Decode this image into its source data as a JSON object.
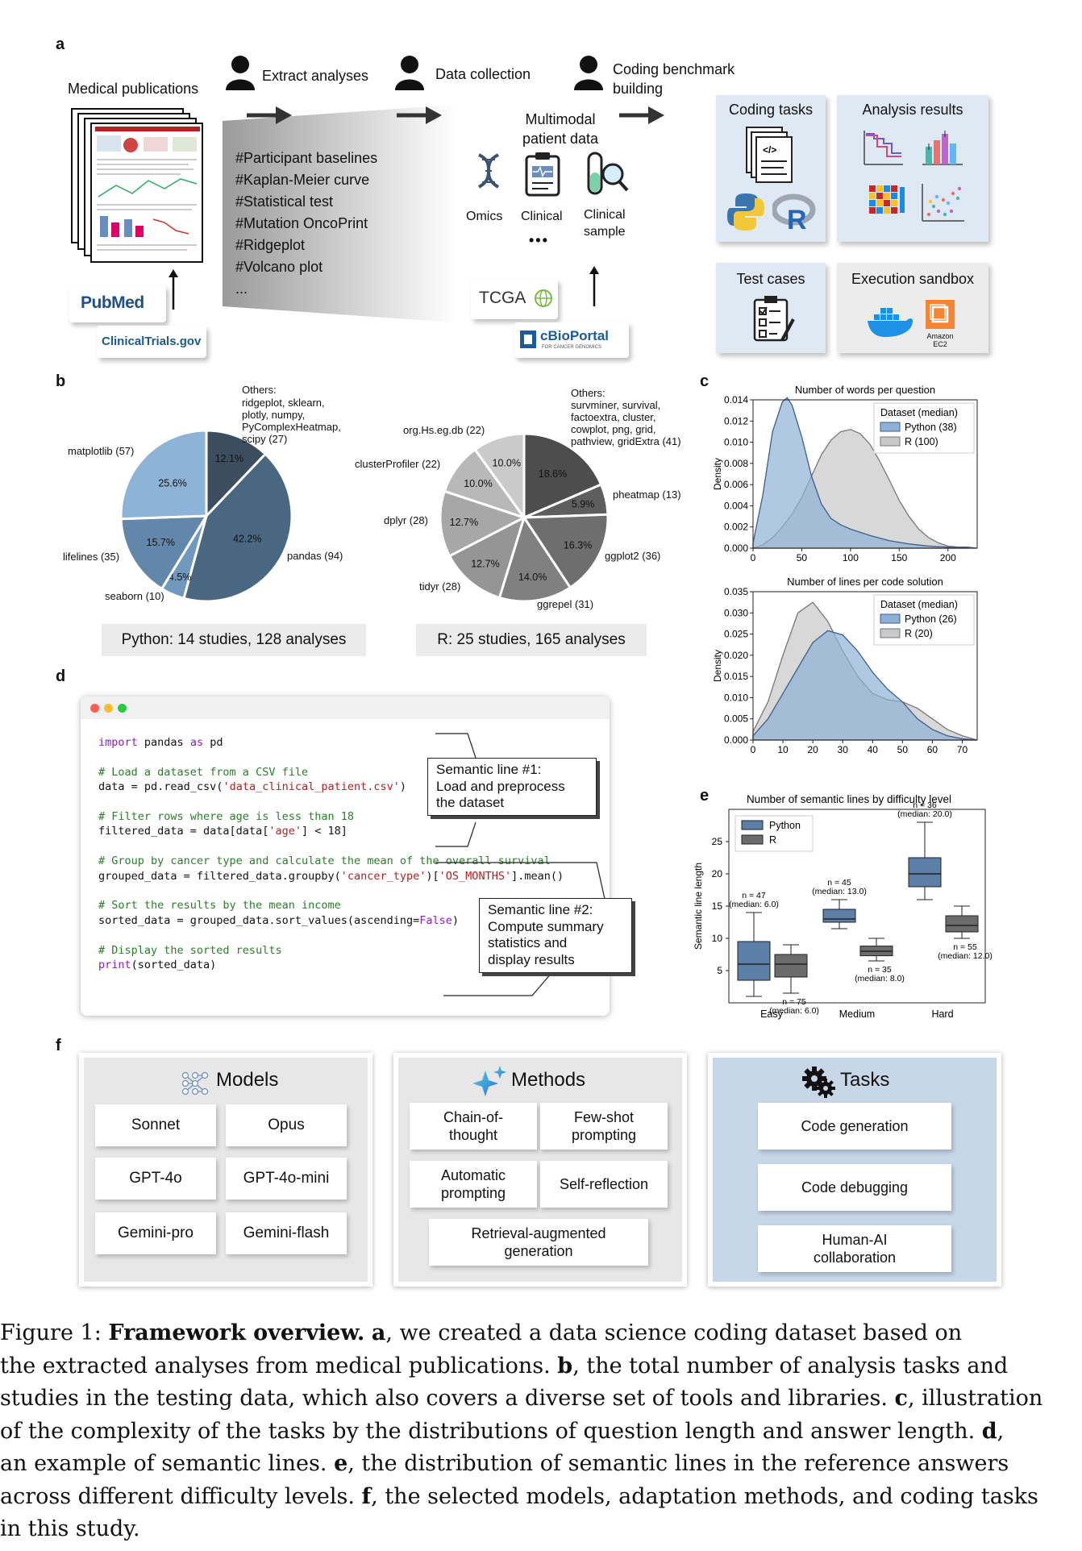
{
  "panels": {
    "a": "a",
    "b": "b",
    "c": "c",
    "d": "d",
    "e": "e",
    "f": "f"
  },
  "a": {
    "medical_publications": "Medical publications",
    "extract_analyses": "Extract analyses",
    "data_collection": "Data collection",
    "coding_benchmark_1": "Coding benchmark",
    "coding_benchmark_2": "building",
    "hashtags": [
      "#Participant baselines",
      "#Kaplan-Meier curve",
      "#Statistical test",
      "#Mutation OncoPrint",
      "#Ridgeplot",
      "#Volcano plot",
      "..."
    ],
    "multimodal_1": "Multimodal",
    "multimodal_2": "patient data",
    "omics": "Omics",
    "clinical": "Clinical",
    "clinical_sample_1": "Clinical",
    "clinical_sample_2": "sample",
    "ellipsis": "•••",
    "pubmed_logo": "PubMed",
    "clinicaltrials_logo": "ClinicalTrials.gov",
    "tcga_logo": "TCGA",
    "cbioportal_logo": "cBioPortal",
    "cbioportal_sub": "FOR CANCER GENOMICS",
    "coding_tasks": "Coding tasks",
    "analysis_results": "Analysis results",
    "test_cases": "Test cases",
    "execution_sandbox": "Execution sandbox",
    "amazon_ec2": "Amazon EC2",
    "amazon_1": "Amazon",
    "amazon_2": "EC2"
  },
  "b": {
    "python_caption": "Python: 14 studies, 128 analyses",
    "r_caption": "R: 25 studies, 165 analyses"
  },
  "chart_data": [
    {
      "type": "pie",
      "id": "python_libraries",
      "slices": [
        {
          "label": "Others: ridgeplot, sklearn, plotly, numpy, PyComplexHeatmap, scipy (27)",
          "count": 27,
          "percent": 12.1
        },
        {
          "label": "pandas (94)",
          "count": 94,
          "percent": 42.2
        },
        {
          "label": "seaborn (10)",
          "count": 10,
          "percent": 4.5
        },
        {
          "label": "lifelines (35)",
          "count": 35,
          "percent": 15.7
        },
        {
          "label": "matplotlib (57)",
          "count": 57,
          "percent": 25.6
        }
      ],
      "colors": [
        "#3c4d60",
        "#4a6781",
        "#7198bd",
        "#6387ab",
        "#8db3d6"
      ]
    },
    {
      "type": "pie",
      "id": "r_libraries",
      "slices": [
        {
          "label": "Others: survminer, survival, factoextra, cluster, cowplot, png, grid, pathview, gridExtra (41)",
          "count": 41,
          "percent": 18.6
        },
        {
          "label": "pheatmap (13)",
          "count": 13,
          "percent": 5.9
        },
        {
          "label": "ggplot2 (36)",
          "count": 36,
          "percent": 16.3
        },
        {
          "label": "ggrepel (31)",
          "count": 31,
          "percent": 14.0
        },
        {
          "label": "tidyr (28)",
          "count": 28,
          "percent": 12.7
        },
        {
          "label": "dplyr (28)",
          "count": 28,
          "percent": 12.7
        },
        {
          "label": "clusterProfiler (22)",
          "count": 22,
          "percent": 10.0
        },
        {
          "label": "org.Hs.eg.db (22)",
          "count": 22,
          "percent": 10.0
        }
      ],
      "colors": [
        "#4d4d4d",
        "#5e5e5e",
        "#6e6e6e",
        "#808080",
        "#959595",
        "#a7a7a7",
        "#b8b8b8",
        "#cacaca"
      ]
    },
    {
      "type": "area",
      "id": "words_per_question",
      "title": "Number of words per question",
      "ylabel": "Density",
      "xlim": [
        0,
        230
      ],
      "ylim": [
        0,
        0.014
      ],
      "xticks": [
        0,
        50,
        100,
        150,
        200
      ],
      "yticks": [
        "0.000",
        "0.002",
        "0.004",
        "0.006",
        "0.008",
        "0.010",
        "0.012",
        "0.014"
      ],
      "legend_title": "Dataset (median)",
      "legend_position": "top-right",
      "series": [
        {
          "name": "Python (38)",
          "color": "#8fb0d6",
          "x": [
            0,
            10,
            20,
            30,
            35,
            40,
            50,
            60,
            70,
            80,
            90,
            100,
            120,
            140,
            160,
            180,
            200,
            220,
            230
          ],
          "y": [
            0.0005,
            0.005,
            0.011,
            0.0138,
            0.0142,
            0.0135,
            0.0105,
            0.0068,
            0.0042,
            0.0028,
            0.0022,
            0.0018,
            0.0012,
            0.0007,
            0.0004,
            0.0002,
            0.0001,
            0.0001,
            0.0
          ]
        },
        {
          "name": "R (100)",
          "color": "#c8c8c8",
          "x": [
            0,
            10,
            20,
            30,
            40,
            50,
            60,
            70,
            80,
            90,
            100,
            110,
            120,
            130,
            140,
            150,
            160,
            170,
            180,
            190,
            200,
            210,
            220
          ],
          "y": [
            0.0,
            0.0003,
            0.001,
            0.002,
            0.0032,
            0.0048,
            0.0068,
            0.0088,
            0.0102,
            0.011,
            0.0112,
            0.0108,
            0.0098,
            0.0082,
            0.0064,
            0.0045,
            0.003,
            0.0018,
            0.001,
            0.0005,
            0.0002,
            0.0001,
            0.0
          ]
        }
      ]
    },
    {
      "type": "area",
      "id": "lines_per_code_solution",
      "title": "Number of lines per code solution",
      "ylabel": "Density",
      "xlim": [
        0,
        75
      ],
      "ylim": [
        0,
        0.035
      ],
      "xticks": [
        0,
        10,
        20,
        30,
        40,
        50,
        60,
        70
      ],
      "yticks": [
        "0.000",
        "0.005",
        "0.010",
        "0.015",
        "0.020",
        "0.025",
        "0.030",
        "0.035"
      ],
      "legend_title": "Dataset (median)",
      "legend_position": "top-right",
      "series": [
        {
          "name": "Python (26)",
          "color": "#8fb0d6",
          "x": [
            0,
            5,
            10,
            15,
            20,
            25,
            30,
            35,
            40,
            45,
            50,
            55,
            60,
            65,
            70,
            75
          ],
          "y": [
            0.001,
            0.005,
            0.011,
            0.017,
            0.023,
            0.0258,
            0.0248,
            0.021,
            0.016,
            0.012,
            0.009,
            0.005,
            0.0025,
            0.001,
            0.0003,
            0.0
          ]
        },
        {
          "name": "R (20)",
          "color": "#c8c8c8",
          "x": [
            0,
            5,
            10,
            15,
            20,
            25,
            30,
            35,
            40,
            45,
            50,
            55,
            60,
            65,
            70,
            75
          ],
          "y": [
            0.002,
            0.009,
            0.02,
            0.03,
            0.0325,
            0.028,
            0.021,
            0.015,
            0.011,
            0.0095,
            0.009,
            0.0075,
            0.005,
            0.0025,
            0.001,
            0.0
          ]
        }
      ]
    },
    {
      "type": "box",
      "id": "semantic_lines_by_difficulty",
      "title": "Number of semantic lines by difficulty level",
      "ylabel": "Semantic line length",
      "categories": [
        "Easy",
        "Medium",
        "Hard"
      ],
      "yticks": [
        5,
        10,
        15,
        20,
        25
      ],
      "ylim": [
        0,
        30
      ],
      "legend_position": "top-left",
      "series": [
        {
          "name": "Python",
          "color": "#5b7fa6",
          "boxes": [
            {
              "min": 1,
              "q1": 3.5,
              "median": 6,
              "q3": 9.5,
              "max": 14,
              "n_label": "n = 47",
              "median_label": "(median: 6.0)"
            },
            {
              "min": 11.5,
              "q1": 12.5,
              "median": 13,
              "q3": 14.5,
              "max": 16,
              "n_label": "n = 45",
              "median_label": "(median: 13.0)"
            },
            {
              "min": 16,
              "q1": 18,
              "median": 20,
              "q3": 22.5,
              "max": 28,
              "n_label": "n = 36",
              "median_label": "(median: 20.0)"
            }
          ]
        },
        {
          "name": "R",
          "color": "#6b6b6b",
          "boxes": [
            {
              "min": 1.5,
              "q1": 4,
              "median": 6,
              "q3": 7.5,
              "max": 9,
              "n_label": "n = 75",
              "median_label": "(median: 6.0)"
            },
            {
              "min": 6.5,
              "q1": 7.3,
              "median": 8,
              "q3": 8.8,
              "max": 10,
              "n_label": "n = 35",
              "median_label": "(median: 8.0)"
            },
            {
              "min": 10,
              "q1": 11,
              "median": 12,
              "q3": 13.5,
              "max": 15,
              "n_label": "n = 55",
              "median_label": "(median: 12.0)"
            }
          ]
        }
      ]
    }
  ],
  "d": {
    "code_lines": [
      [
        {
          "c": "kw",
          "t": "import"
        },
        {
          "c": "",
          "t": " pandas "
        },
        {
          "c": "kw",
          "t": "as"
        },
        {
          "c": "",
          "t": " pd"
        }
      ],
      [],
      [
        {
          "c": "cm",
          "t": "# Load a dataset from a CSV file"
        }
      ],
      [
        {
          "c": "",
          "t": "data = pd.read_csv("
        },
        {
          "c": "st",
          "t": "'data_clinical_patient.csv'"
        },
        {
          "c": "",
          "t": ")"
        }
      ],
      [],
      [
        {
          "c": "cm",
          "t": "# Filter rows where age is less than 18"
        }
      ],
      [
        {
          "c": "",
          "t": "filtered_data = data[data["
        },
        {
          "c": "st",
          "t": "'age'"
        },
        {
          "c": "",
          "t": "] < 18]"
        }
      ],
      [],
      [
        {
          "c": "cm",
          "t": "# Group by cancer type and calculate the mean of the overall survival"
        }
      ],
      [
        {
          "c": "",
          "t": "grouped_data = filtered_data.groupby("
        },
        {
          "c": "st",
          "t": "'cancer_type'"
        },
        {
          "c": "",
          "t": ")["
        },
        {
          "c": "st",
          "t": "'OS_MONTHS'"
        },
        {
          "c": "",
          "t": "].mean()"
        }
      ],
      [],
      [
        {
          "c": "cm",
          "t": "# Sort the results by the mean income"
        }
      ],
      [
        {
          "c": "",
          "t": "sorted_data = grouped_data.sort_values(ascending="
        },
        {
          "c": "kw",
          "t": "False"
        },
        {
          "c": "",
          "t": ")"
        }
      ],
      [],
      [
        {
          "c": "cm",
          "t": "# Display the sorted results"
        }
      ],
      [
        {
          "c": "kw",
          "t": "print"
        },
        {
          "c": "",
          "t": "(sorted_data)"
        }
      ]
    ],
    "callout1": [
      "Semantic line #1:",
      "Load and preprocess",
      "the dataset"
    ],
    "callout2": [
      "Semantic line #2:",
      "Compute summary",
      "statistics and",
      "display results"
    ]
  },
  "f": {
    "models_title": "Models",
    "models": [
      "Sonnet",
      "Opus",
      "GPT-4o",
      "GPT-4o-mini",
      "Gemini-pro",
      "Gemini-flash"
    ],
    "methods_title": "Methods",
    "methods": [
      "Chain-of-\nthought",
      "Few-shot\nprompting",
      "Automatic\nprompting",
      "Self-reflection",
      "Retrieval-augmented\ngeneration"
    ],
    "tasks_title": "Tasks",
    "tasks": [
      "Code generation",
      "Code debugging",
      "Human-AI\ncollaboration"
    ]
  },
  "caption": {
    "label": "Figure 1: ",
    "bold": "Framework overview.",
    "text": " a, we created a data science coding dataset based on the extracted analyses from medical publications. b, the total number of analysis tasks and studies in the testing data, which also covers a diverse set of tools and libraries. c, illustration of the complexity of the tasks by the distributions of question length and answer length. d, an example of semantic lines. e, the distribution of semantic lines in the reference answers across different difficulty levels. f, the selected models, adaptation methods, and coding tasks in this study.",
    "lines": [
      "Figure 1: <b>Framework overview.</b> <b>a</b>, we created a data science coding dataset based on",
      "the extracted analyses from medical publications. <b>b</b>, the total number of analysis tasks and",
      "studies in the testing data, which also covers a diverse set of tools and libraries. <b>c</b>, illustration",
      "of the complexity of the tasks by the distributions of question length and answer length. <b>d</b>,",
      "an example of semantic lines. <b>e</b>, the distribution of semantic lines in the reference answers",
      "across different difficulty levels. <b>f</b>, the selected models, adaptation methods, and coding tasks",
      "in this study."
    ]
  }
}
